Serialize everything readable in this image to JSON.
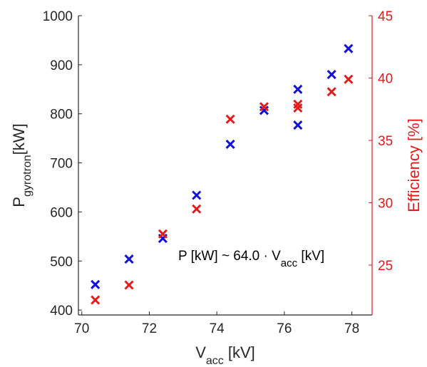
{
  "chart_data": {
    "type": "scatter",
    "xlabel": {
      "main": "V",
      "sub": "acc",
      "unit": " [kV]"
    },
    "ylabel_left": {
      "main": "P",
      "sub": "gyrotron",
      "unit": "[kW]"
    },
    "ylabel_right": "Efficiency [%]",
    "xlim": [
      69.9,
      78.6
    ],
    "ylim_left": [
      390,
      1000
    ],
    "ylim_right": [
      21.0,
      45.0
    ],
    "x_ticks": [
      70,
      72,
      74,
      76,
      78
    ],
    "y_ticks_left": [
      400,
      500,
      600,
      700,
      800,
      900,
      1000
    ],
    "y_ticks_right": [
      25,
      30,
      35,
      40,
      45
    ],
    "grid": false,
    "colors": {
      "power": "#1010dd",
      "efficiency": "#e41a1a",
      "axis": "#262626"
    },
    "fit": {
      "slope": 64.0,
      "label": {
        "pre": "P [kW] ~ 64.0 · V",
        "sub": "acc",
        "post": " [kV]"
      }
    },
    "series": [
      {
        "axis": "left",
        "marker": "x",
        "x": [
          70.4,
          71.4,
          72.4,
          73.4,
          74.4,
          75.4,
          76.4,
          76.4,
          77.4,
          77.9
        ],
        "y": [
          452,
          504,
          546,
          634,
          738,
          807,
          850,
          777,
          880,
          933
        ]
      },
      {
        "axis": "right",
        "marker": "x",
        "x": [
          70.4,
          71.4,
          72.4,
          73.4,
          74.4,
          75.4,
          76.4,
          76.4,
          77.4,
          77.9
        ],
        "y": [
          22.2,
          23.4,
          27.5,
          29.5,
          36.7,
          37.7,
          37.9,
          37.6,
          38.9,
          39.9
        ]
      }
    ]
  }
}
